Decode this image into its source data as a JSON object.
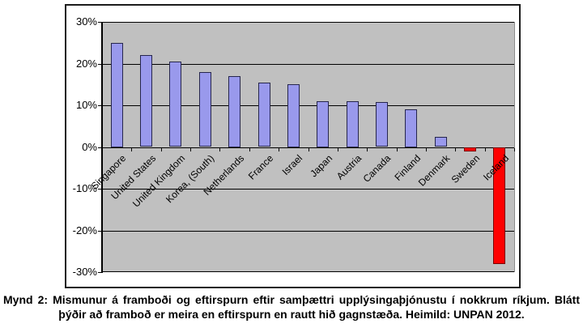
{
  "figure": {
    "caption": "Mynd 2: Mismunur á framboði og eftirspurn eftir samþættri upplýsingaþjónustu í nokkrum ríkjum. Blátt þýðir að framboð er meira en eftirspurn en rautt hið gagnstæða. Heimild: UNPAN 2012."
  },
  "chart_data": {
    "type": "bar",
    "title": "",
    "xlabel": "",
    "ylabel": "",
    "categories": [
      "Singapore",
      "United States",
      "United Kingdom",
      "Korea, (South)",
      "Netherlands",
      "France",
      "Israel",
      "Japan",
      "Austria",
      "Canada",
      "Finland",
      "Denmark",
      "Sweden",
      "Iceland"
    ],
    "values": [
      25,
      22,
      20.5,
      18,
      17,
      15.5,
      15,
      11,
      11,
      10.8,
      9,
      2.5,
      -1,
      -28
    ],
    "ylim": [
      -30,
      30
    ],
    "ytick_values": [
      30,
      20,
      10,
      0,
      -10,
      -20,
      -30
    ],
    "ytick_labels": [
      "30%",
      "20%",
      "10%",
      "0%",
      "-10%",
      "-20%",
      "-30%"
    ],
    "grid": true,
    "legend": "none",
    "colors": {
      "positive_fill": "#9999ec",
      "positive_border": "#26264d",
      "negative_fill": "#fe0000",
      "negative_border": "#7a0000",
      "plot_background": "#c0c0c0",
      "gridline": "#000000"
    }
  }
}
